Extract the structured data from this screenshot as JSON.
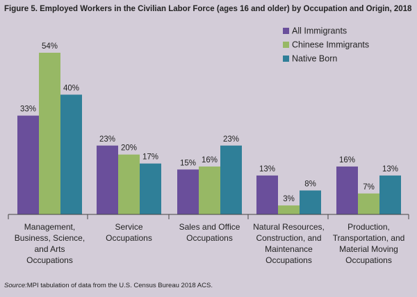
{
  "chart_data": {
    "type": "bar",
    "title": "Figure 5. Employed Workers in the Civilian Labor Force (ages 16 and older) by Occupation and Origin, 2018",
    "categories": [
      [
        "Management,",
        "Business, Science,",
        "and Arts",
        "Occupations"
      ],
      [
        "Service",
        "Occupations"
      ],
      [
        "Sales and Office",
        "Occupations"
      ],
      [
        "Natural Resources,",
        "Construction, and",
        "Maintenance",
        "Occupations"
      ],
      [
        "Production,",
        "Transportation, and",
        "Material Moving",
        "Occupations"
      ]
    ],
    "series": [
      {
        "name": "All Immigrants",
        "color": "#6a4f9b",
        "values": [
          33,
          23,
          15,
          13,
          16
        ]
      },
      {
        "name": "Chinese Immigrants",
        "color": "#97b865",
        "values": [
          54,
          20,
          16,
          3,
          7
        ]
      },
      {
        "name": "Native Born",
        "color": "#2f7f98",
        "values": [
          40,
          17,
          23,
          8,
          13
        ]
      }
    ],
    "value_suffix": "%",
    "ylim": [
      0,
      54
    ],
    "legend_position": "top-right",
    "xlabel": "",
    "ylabel": ""
  },
  "source": {
    "label": "Source:",
    "text": "MPI tabulation of data from the U.S. Census Bureau 2018 ACS."
  }
}
